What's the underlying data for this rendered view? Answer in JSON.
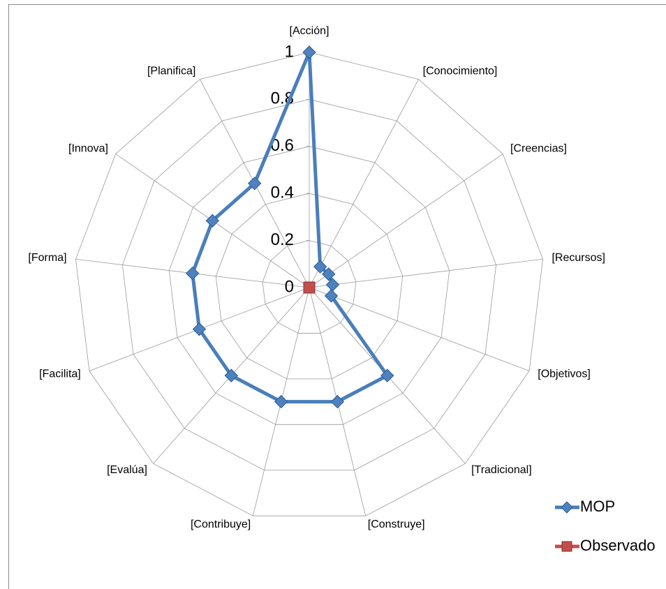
{
  "chart_data": {
    "type": "radar",
    "categories": [
      "[Acción]",
      "[Conocimiento]",
      "[Creencias]",
      "[Recursos]",
      "[Objetivos]",
      "[Tradicional]",
      "[Construye]",
      "[Contribuye]",
      "[Evalúa]",
      "[Facilita]",
      "[Forma]",
      "[Innova]",
      "[Planifica]"
    ],
    "series": [
      {
        "name": "MOP",
        "color": "#4a7ebb",
        "values": [
          1,
          0.1,
          0.1,
          0.1,
          0.1,
          0.5,
          0.5,
          0.5,
          0.5,
          0.5,
          0.5,
          0.5,
          0.5
        ]
      },
      {
        "name": "Observado",
        "color": "#c0504d",
        "values": [
          0,
          0,
          0,
          0,
          0,
          0,
          0,
          0,
          0,
          0,
          0,
          0,
          0
        ]
      }
    ],
    "ylim": [
      0,
      1
    ],
    "yticks": [
      0,
      0.2,
      0.4,
      0.6,
      0.8,
      1
    ],
    "grid": true,
    "legend": "right"
  }
}
